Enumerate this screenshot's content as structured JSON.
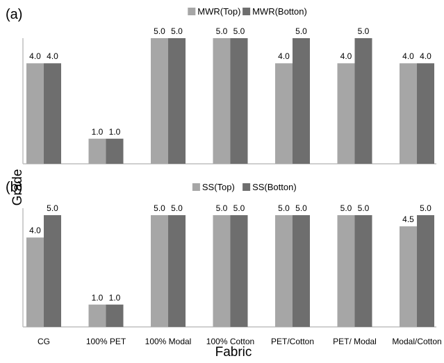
{
  "figure": {
    "ylabel": "Grade",
    "xlabel": "Fabric"
  },
  "chart_data": [
    {
      "type": "bar",
      "panel_label": "(a)",
      "categories": [
        "CG",
        "100% PET",
        "100% Modal",
        "100% Cotton",
        "PET/Cotton",
        "PET/ Modal",
        "Modal/Cotton"
      ],
      "series": [
        {
          "name": "MWR(Top)",
          "values": [
            4.0,
            1.0,
            5.0,
            5.0,
            4.0,
            4.0,
            4.0
          ],
          "labels": [
            "4.0",
            "1.0",
            "5.0",
            "5.0",
            "4.0",
            "4.0",
            "4.0"
          ],
          "color": "#a6a6a6"
        },
        {
          "name": "MWR(Botton)",
          "values": [
            4.0,
            1.0,
            5.0,
            5.0,
            5.0,
            5.0,
            4.0
          ],
          "labels": [
            "4.0",
            "1.0",
            "5.0",
            "5.0",
            "5.0",
            "5.0",
            "4.0"
          ],
          "color": "#6e6e6e"
        }
      ],
      "ylim": [
        0,
        5.0
      ],
      "grid": false,
      "legend_position": "top"
    },
    {
      "type": "bar",
      "panel_label": "(b)",
      "categories": [
        "CG",
        "100% PET",
        "100% Modal",
        "100% Cotton",
        "PET/Cotton",
        "PET/ Modal",
        "Modal/Cotton"
      ],
      "series": [
        {
          "name": "SS(Top)",
          "values": [
            4.0,
            1.0,
            5.0,
            5.0,
            5.0,
            5.0,
            4.5
          ],
          "labels": [
            "4.0",
            "1.0",
            "5.0",
            "5.0",
            "5.0",
            "5.0",
            "4.5"
          ],
          "color": "#a6a6a6"
        },
        {
          "name": "SS(Botton)",
          "values": [
            5.0,
            1.0,
            5.0,
            5.0,
            5.0,
            5.0,
            5.0
          ],
          "labels": [
            "5.0",
            "1.0",
            "5.0",
            "5.0",
            "5.0",
            "5.0",
            "5.0"
          ],
          "color": "#6e6e6e"
        }
      ],
      "ylim": [
        0,
        5.0
      ],
      "grid": false,
      "legend_position": "top"
    }
  ]
}
